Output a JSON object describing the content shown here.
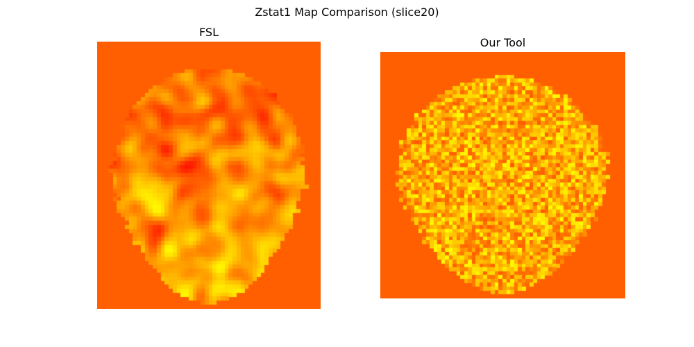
{
  "figure": {
    "title": "Zstat1 Map Comparison (slice20)"
  },
  "chart_data": [
    {
      "type": "heatmap",
      "title": "FSL",
      "colormap": "hot",
      "axes": "off",
      "background_color": "#ff5f00",
      "description_colors": [
        "#e60000",
        "#ff2a00",
        "#ff8c00",
        "#ffd000",
        "#fff000"
      ],
      "grid_cells": [
        56,
        67
      ],
      "smoothness": "smooth",
      "brain_mask_shape": "axial brain slice"
    },
    {
      "type": "heatmap",
      "title": "Our Tool",
      "colormap": "hot",
      "axes": "off",
      "background_color": "#ff5f00",
      "description_colors": [
        "#ff8c00",
        "#ffa800",
        "#ffc800",
        "#ffe000",
        "#fff200"
      ],
      "grid_cells": [
        64,
        64
      ],
      "smoothness": "noisy",
      "brain_mask_shape": "axial brain slice"
    }
  ]
}
